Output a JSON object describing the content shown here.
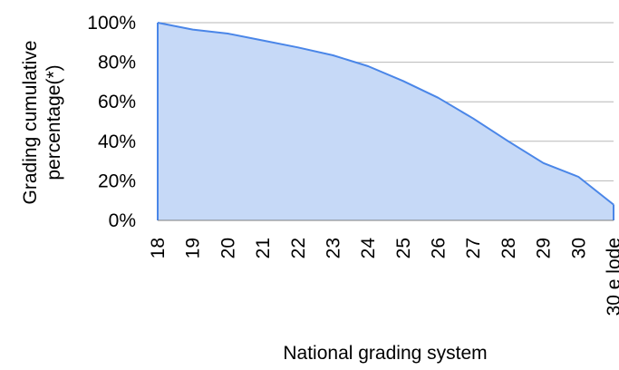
{
  "chart_data": {
    "type": "area",
    "categories": [
      "18",
      "19",
      "20",
      "21",
      "22",
      "23",
      "24",
      "25",
      "26",
      "27",
      "28",
      "29",
      "30",
      "30 e lode"
    ],
    "values": [
      100,
      96.5,
      94.5,
      91,
      87.5,
      83.5,
      78,
      70.5,
      62,
      51.5,
      40,
      29,
      22,
      8
    ],
    "title": "",
    "xlabel": "National grading system",
    "ylabel_lines": [
      "Grading cumulative",
      "percentage(*)"
    ],
    "ylim": [
      0,
      100
    ],
    "yticks": [
      "0%",
      "20%",
      "40%",
      "60%",
      "80%",
      "100%"
    ],
    "ytick_values": [
      0,
      20,
      40,
      60,
      80,
      100
    ],
    "grid": true,
    "legend": "none",
    "colors": {
      "fill": "#c6d9f7",
      "line": "#4a86e8",
      "grid": "#b7b7b7",
      "axis": "#7f7f7f"
    }
  }
}
